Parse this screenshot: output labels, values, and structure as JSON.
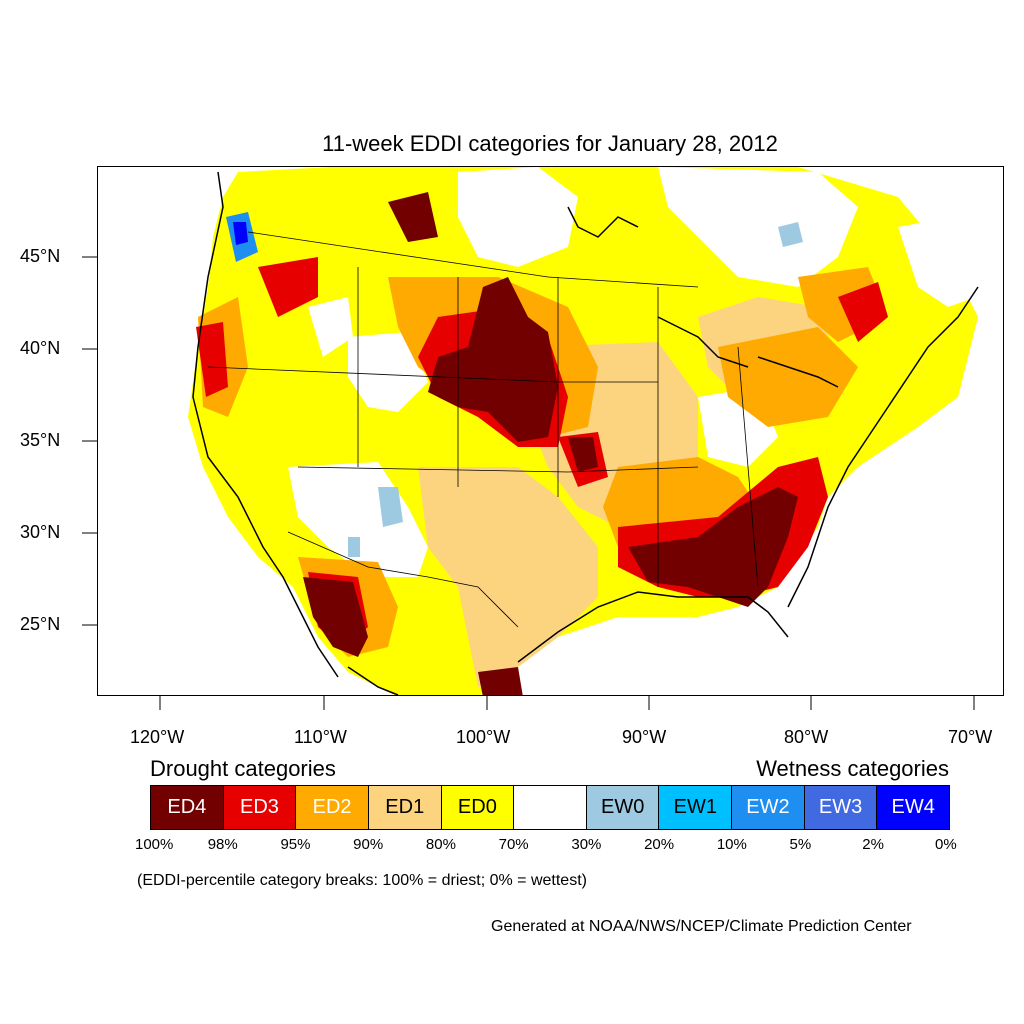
{
  "title": "11-week EDDI categories for January 28, 2012",
  "lat_labels": [
    "45°N",
    "40°N",
    "35°N",
    "30°N",
    "25°N"
  ],
  "lon_labels": [
    "120°W",
    "110°W",
    "100°W",
    "90°W",
    "80°W",
    "70°W"
  ],
  "legend": {
    "drought_heading": "Drought categories",
    "wetness_heading": "Wetness categories",
    "categories": [
      {
        "label": "ED4",
        "color": "#730000",
        "text_color": "#ffffff"
      },
      {
        "label": "ED3",
        "color": "#e60000",
        "text_color": "#ffffff"
      },
      {
        "label": "ED2",
        "color": "#ffaa00",
        "text_color": "#ffffff"
      },
      {
        "label": "ED1",
        "color": "#fcd37f",
        "text_color": "#000000"
      },
      {
        "label": "ED0",
        "color": "#ffff00",
        "text_color": "#000000"
      },
      {
        "label": "",
        "color": "#ffffff",
        "text_color": "#000000"
      },
      {
        "label": "EW0",
        "color": "#9ecae1",
        "text_color": "#000000"
      },
      {
        "label": "EW1",
        "color": "#00bfff",
        "text_color": "#000000"
      },
      {
        "label": "EW2",
        "color": "#1e8ff0",
        "text_color": "#ffffff"
      },
      {
        "label": "EW3",
        "color": "#4169e1",
        "text_color": "#ffffff"
      },
      {
        "label": "EW4",
        "color": "#0000ff",
        "text_color": "#ffffff"
      }
    ],
    "percent_breaks": [
      "100%",
      "98%",
      "95%",
      "90%",
      "80%",
      "70%",
      "30%",
      "20%",
      "10%",
      "5%",
      "2%",
      "0%"
    ]
  },
  "note": "(EDDI-percentile category breaks: 100% = driest; 0% = wettest)",
  "credit": "Generated at NOAA/NWS/NCEP/Climate Prediction Center"
}
